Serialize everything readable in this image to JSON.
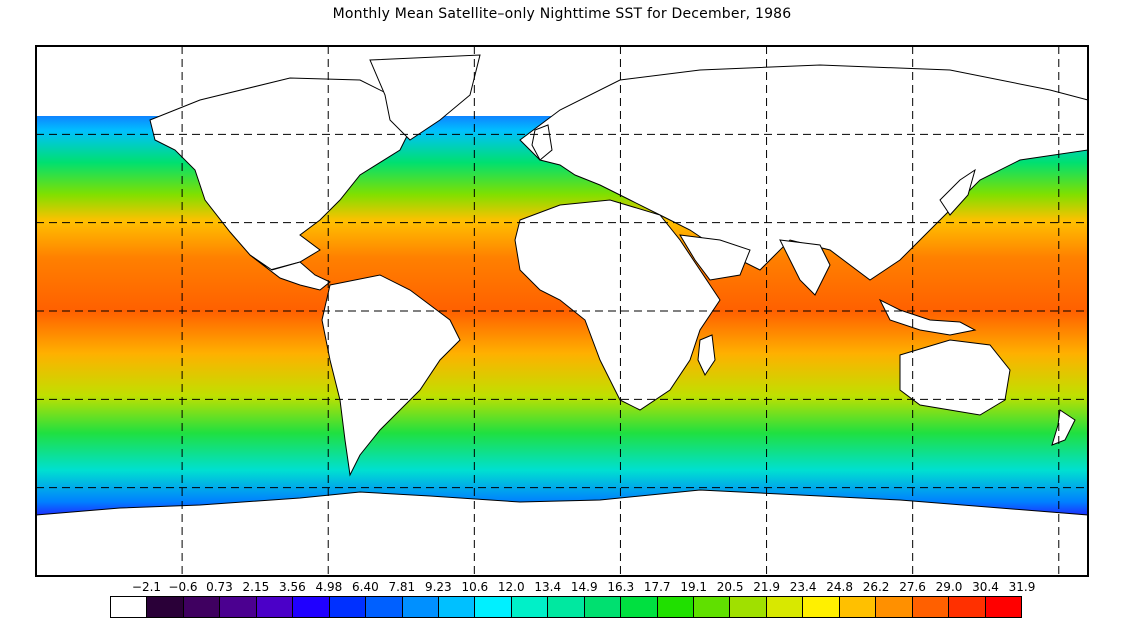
{
  "title": "Monthly Mean Satellite–only Nighttime SST for December, 1986",
  "legend": {
    "labels": [
      "−2.1",
      "−0.6",
      "0.73",
      "2.15",
      "3.56",
      "4.98",
      "6.40",
      "7.81",
      "9.23",
      "10.6",
      "12.0",
      "13.4",
      "14.9",
      "16.3",
      "17.7",
      "19.1",
      "20.5",
      "21.9",
      "23.4",
      "24.8",
      "26.2",
      "27.6",
      "29.0",
      "30.4",
      "31.9"
    ],
    "colors": [
      "#ffffff",
      "#2a0038",
      "#3f0060",
      "#4b0090",
      "#4b00c8",
      "#2000ff",
      "#0030ff",
      "#0060ff",
      "#0090ff",
      "#00c0ff",
      "#00f0ff",
      "#00f0c8",
      "#00e8a0",
      "#00e070",
      "#00e040",
      "#20e000",
      "#60e000",
      "#a0e000",
      "#d8e800",
      "#fff000",
      "#ffc000",
      "#ff9000",
      "#ff6000",
      "#ff3000",
      "#ff0000"
    ]
  },
  "map": {
    "grid_lon": [
      -150,
      -100,
      -50,
      0,
      50,
      100,
      150
    ],
    "grid_lat": [
      60,
      30,
      0,
      -30,
      -60
    ],
    "legend_colors_ref": "legend.colors"
  }
}
